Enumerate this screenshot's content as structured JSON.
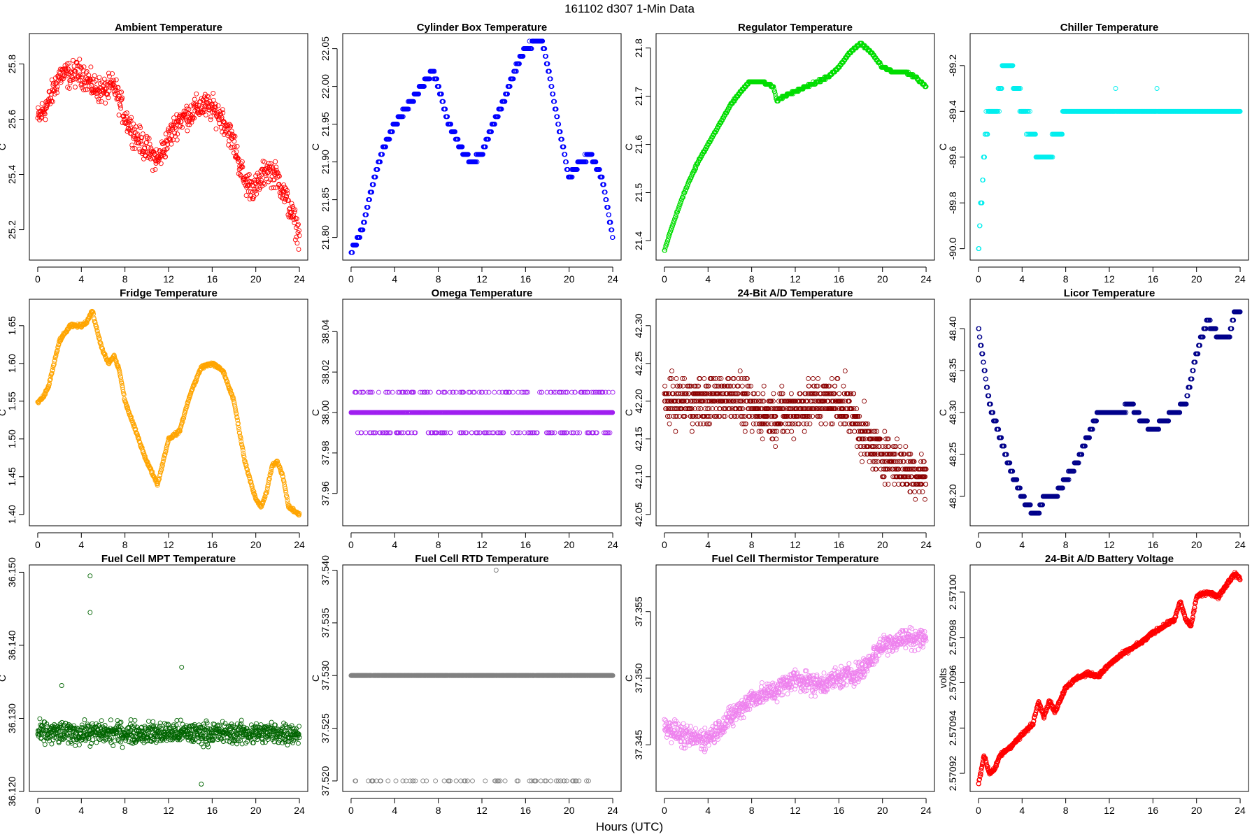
{
  "figure": {
    "supertitle": "161102   d307   1-Min Data",
    "xlabel": "Hours (UTC)"
  },
  "chart_data": [
    {
      "type": "scatter",
      "title": "Ambient Temperature",
      "ylabel": "C",
      "color": "#FF0000",
      "xlim": [
        0,
        24
      ],
      "ylim": [
        25.09,
        25.91
      ],
      "xticks": [
        0,
        4,
        8,
        12,
        16,
        20,
        24
      ],
      "xticklabels": [
        "0",
        "4",
        "8",
        "12",
        "16",
        "20",
        "24"
      ],
      "yticks": [
        25.2,
        25.4,
        25.6,
        25.8
      ],
      "yticklabels": [
        "25.2",
        "25.4",
        "25.6",
        "25.8"
      ],
      "x": [
        0,
        1,
        2,
        3,
        4,
        5,
        6,
        7,
        8,
        9,
        10,
        11,
        12,
        13,
        14,
        15,
        16,
        17,
        18,
        19,
        20,
        21,
        22,
        23,
        24
      ],
      "y": [
        25.6,
        25.66,
        25.76,
        25.76,
        25.77,
        25.72,
        25.7,
        25.72,
        25.61,
        25.54,
        25.49,
        25.45,
        25.53,
        25.6,
        25.62,
        25.65,
        25.64,
        25.6,
        25.51,
        25.37,
        25.35,
        25.42,
        25.39,
        25.29,
        25.18
      ],
      "jitter": 0.07,
      "n": 720
    },
    {
      "type": "scatter",
      "title": "Cylinder Box Temperature",
      "ylabel": "C",
      "color": "#0000FF",
      "xlim": [
        0,
        24
      ],
      "ylim": [
        21.77,
        22.07
      ],
      "xticks": [
        0,
        4,
        8,
        12,
        16,
        20,
        24
      ],
      "xticklabels": [
        "0",
        "4",
        "8",
        "12",
        "16",
        "20",
        "24"
      ],
      "yticks": [
        21.8,
        21.85,
        21.9,
        21.95,
        22.0,
        22.05
      ],
      "yticklabels": [
        "21.80",
        "21.85",
        "21.90",
        "21.95",
        "22.00",
        "22.05"
      ],
      "x": [
        0,
        1,
        2,
        3,
        4,
        5,
        6,
        7,
        7.5,
        8,
        9,
        10,
        11,
        12,
        13,
        14,
        15,
        16,
        17,
        17.5,
        18,
        19,
        20,
        21,
        22,
        23,
        24
      ],
      "y": [
        21.78,
        21.81,
        21.87,
        21.92,
        21.95,
        21.97,
        21.99,
        22.01,
        22.02,
        22.0,
        21.95,
        21.92,
        21.9,
        21.91,
        21.95,
        21.98,
        22.02,
        22.05,
        22.06,
        22.06,
        22.03,
        21.95,
        21.88,
        21.9,
        21.91,
        21.88,
        21.8
      ],
      "jitter": 0.003,
      "step": 0.01,
      "n": 620
    },
    {
      "type": "scatter",
      "title": "Regulator Temperature",
      "ylabel": "C",
      "color": "#00DD00",
      "xlim": [
        0,
        24
      ],
      "ylim": [
        21.36,
        21.83
      ],
      "xticks": [
        0,
        4,
        8,
        12,
        16,
        20,
        24
      ],
      "xticklabels": [
        "0",
        "4",
        "8",
        "12",
        "16",
        "20",
        "24"
      ],
      "yticks": [
        21.4,
        21.5,
        21.6,
        21.7,
        21.8
      ],
      "yticklabels": [
        "21.4",
        "21.5",
        "21.6",
        "21.7",
        "21.8"
      ],
      "x": [
        0,
        1,
        2,
        3,
        4,
        5,
        6,
        7,
        7.8,
        9,
        10,
        10.3,
        11,
        12,
        13,
        14,
        15,
        16,
        17,
        18,
        19,
        20,
        21,
        22,
        23,
        24
      ],
      "y": [
        21.38,
        21.45,
        21.51,
        21.56,
        21.6,
        21.64,
        21.68,
        21.71,
        21.73,
        21.73,
        21.72,
        21.69,
        21.7,
        21.71,
        21.72,
        21.73,
        21.74,
        21.76,
        21.79,
        21.81,
        21.79,
        21.76,
        21.75,
        21.75,
        21.74,
        21.72
      ],
      "jitter": 0.002,
      "step": 0.005,
      "n": 620
    },
    {
      "type": "scatter",
      "title": "Chiller Temperature",
      "ylabel": "C",
      "color": "#00EEEE",
      "xlim": [
        0,
        24
      ],
      "ylim": [
        -90.05,
        -89.06
      ],
      "xticks": [
        0,
        4,
        8,
        12,
        16,
        20,
        24
      ],
      "xticklabels": [
        "0",
        "4",
        "8",
        "12",
        "16",
        "20",
        "24"
      ],
      "yticks": [
        -90.0,
        -89.8,
        -89.6,
        -89.4,
        -89.2
      ],
      "yticklabels": [
        "-90.0",
        "-89.8",
        "-89.6",
        "-89.4",
        "-89.2"
      ],
      "x": [
        0,
        0.3,
        0.6,
        1,
        1.5,
        2,
        2.5,
        3,
        3.5,
        4,
        5,
        5.5,
        6,
        6.5,
        7,
        7.5,
        8,
        9,
        10,
        11,
        12,
        13,
        14,
        15,
        16,
        17,
        18,
        19,
        20,
        21,
        22,
        23,
        24
      ],
      "y": [
        -90.0,
        -89.8,
        -89.5,
        -89.4,
        -89.4,
        -89.3,
        -89.2,
        -89.2,
        -89.3,
        -89.4,
        -89.5,
        -89.6,
        -89.6,
        -89.6,
        -89.5,
        -89.5,
        -89.4,
        -89.4,
        -89.4,
        -89.4,
        -89.4,
        -89.4,
        -89.4,
        -89.4,
        -89.4,
        -89.4,
        -89.4,
        -89.4,
        -89.4,
        -89.4,
        -89.4,
        -89.4,
        -89.4
      ],
      "jitter": 0.06,
      "step": 0.1,
      "n": 520
    },
    {
      "type": "scatter",
      "title": "Fridge Temperature",
      "ylabel": "C",
      "color": "#FFA500",
      "xlim": [
        0,
        24
      ],
      "ylim": [
        1.385,
        1.685
      ],
      "xticks": [
        0,
        4,
        8,
        12,
        16,
        20,
        24
      ],
      "xticklabels": [
        "0",
        "4",
        "8",
        "12",
        "16",
        "20",
        "24"
      ],
      "yticks": [
        1.4,
        1.45,
        1.5,
        1.55,
        1.6,
        1.65
      ],
      "yticklabels": [
        "1.40",
        "1.45",
        "1.50",
        "1.55",
        "1.60",
        "1.65"
      ],
      "x": [
        0,
        0.5,
        1,
        1.5,
        2,
        3,
        4,
        4.5,
        5,
        5.5,
        6,
        6.5,
        7,
        7.5,
        8,
        9,
        10,
        11,
        11.5,
        12,
        12.5,
        13,
        14,
        15,
        16,
        17,
        18,
        19,
        20,
        20.5,
        21,
        21.5,
        22,
        22.5,
        23,
        23.5,
        24
      ],
      "y": [
        1.548,
        1.555,
        1.57,
        1.6,
        1.63,
        1.65,
        1.65,
        1.655,
        1.67,
        1.64,
        1.615,
        1.6,
        1.61,
        1.59,
        1.55,
        1.51,
        1.47,
        1.44,
        1.47,
        1.5,
        1.505,
        1.51,
        1.56,
        1.595,
        1.6,
        1.59,
        1.55,
        1.47,
        1.42,
        1.41,
        1.43,
        1.465,
        1.47,
        1.45,
        1.41,
        1.405,
        1.4
      ],
      "jitter": 0.003,
      "n": 720
    },
    {
      "type": "scatter",
      "title": "Omega Temperature",
      "ylabel": "C",
      "color": "#A020F0",
      "xlim": [
        0,
        24
      ],
      "ylim": [
        37.944,
        38.056
      ],
      "xticks": [
        0,
        4,
        8,
        12,
        16,
        20,
        24
      ],
      "xticklabels": [
        "0",
        "4",
        "8",
        "12",
        "16",
        "20",
        "24"
      ],
      "yticks": [
        37.96,
        37.98,
        38.0,
        38.02,
        38.04
      ],
      "yticklabels": [
        "37.96",
        "37.98",
        "38.00",
        "38.02",
        "38.04"
      ],
      "x": [
        0,
        24
      ],
      "y": [
        38.0,
        38.0
      ],
      "jitter": 0.012,
      "step": 0.01,
      "n": 1100
    },
    {
      "type": "scatter",
      "title": "24-Bit A/D Temperature",
      "ylabel": "C",
      "color": "#8B0000",
      "xlim": [
        0,
        24
      ],
      "ylim": [
        42.035,
        42.335
      ],
      "xticks": [
        0,
        4,
        8,
        12,
        16,
        20,
        24
      ],
      "xticklabels": [
        "0",
        "4",
        "8",
        "12",
        "16",
        "20",
        "24"
      ],
      "yticks": [
        42.05,
        42.1,
        42.15,
        42.2,
        42.25,
        42.3
      ],
      "yticklabels": [
        "42.05",
        "42.10",
        "42.15",
        "42.20",
        "42.25",
        "42.30"
      ],
      "x": [
        0,
        2,
        4,
        6,
        8,
        10,
        12,
        14,
        16,
        17,
        18,
        19,
        20,
        22,
        24
      ],
      "y": [
        42.2,
        42.2,
        42.2,
        42.21,
        42.19,
        42.18,
        42.19,
        42.2,
        42.2,
        42.19,
        42.16,
        42.14,
        42.13,
        42.11,
        42.1
      ],
      "jitter": 0.045,
      "step": 0.01,
      "n": 1100
    },
    {
      "type": "scatter",
      "title": "Licor Temperature",
      "ylabel": "C",
      "color": "#00008B",
      "xlim": [
        0,
        24
      ],
      "ylim": [
        48.165,
        48.435
      ],
      "xticks": [
        0,
        4,
        8,
        12,
        16,
        20,
        24
      ],
      "xticklabels": [
        "0",
        "4",
        "8",
        "12",
        "16",
        "20",
        "24"
      ],
      "yticks": [
        48.2,
        48.25,
        48.3,
        48.35,
        48.4
      ],
      "yticklabels": [
        "48.20",
        "48.25",
        "48.30",
        "48.35",
        "48.40"
      ],
      "x": [
        0,
        1,
        2,
        3,
        4,
        5,
        5.5,
        6,
        7,
        8,
        9,
        10,
        11,
        12,
        13,
        14,
        15,
        16,
        17,
        18,
        19,
        20,
        21,
        22,
        23,
        23.5,
        24
      ],
      "y": [
        48.4,
        48.31,
        48.27,
        48.23,
        48.2,
        48.18,
        48.18,
        48.2,
        48.2,
        48.22,
        48.24,
        48.27,
        48.3,
        48.3,
        48.3,
        48.31,
        48.29,
        48.28,
        48.29,
        48.3,
        48.31,
        48.37,
        48.41,
        48.39,
        48.39,
        48.42,
        48.42
      ],
      "jitter": 0.002,
      "step": 0.01,
      "n": 560
    },
    {
      "type": "scatter",
      "title": "Fuel Cell MPT Temperature",
      "ylabel": "C",
      "color": "#006400",
      "xlim": [
        0,
        24
      ],
      "ylim": [
        36.12,
        36.151
      ],
      "xticks": [
        0,
        4,
        8,
        12,
        16,
        20,
        24
      ],
      "xticklabels": [
        "0",
        "4",
        "8",
        "12",
        "16",
        "20",
        "24"
      ],
      "yticks": [
        36.12,
        36.13,
        36.14,
        36.15
      ],
      "yticklabels": [
        "36.120",
        "36.130",
        "36.140",
        "36.150"
      ],
      "x": [
        0,
        24
      ],
      "y": [
        36.128,
        36.128
      ],
      "jitter": 0.0022,
      "n": 900,
      "outliers": [
        [
          4.8,
          36.1495
        ],
        [
          4.8,
          36.1445
        ],
        [
          13.2,
          36.137
        ],
        [
          2.2,
          36.1345
        ],
        [
          15,
          36.121
        ]
      ]
    },
    {
      "type": "scatter",
      "title": "Fuel Cell RTD Temperature",
      "ylabel": "C",
      "color": "#808080",
      "xlim": [
        0,
        24
      ],
      "ylim": [
        37.519,
        37.5405
      ],
      "xticks": [
        0,
        4,
        8,
        12,
        16,
        20,
        24
      ],
      "xticklabels": [
        "0",
        "4",
        "8",
        "12",
        "16",
        "20",
        "24"
      ],
      "yticks": [
        37.52,
        37.525,
        37.53,
        37.535,
        37.54
      ],
      "yticklabels": [
        "37.520",
        "37.525",
        "37.530",
        "37.535",
        "37.540"
      ],
      "x": [
        0,
        24
      ],
      "y": [
        37.53,
        37.53
      ],
      "jitter": 0,
      "n": 900,
      "outliers": [
        [
          13.3,
          37.54
        ]
      ],
      "low_level": 37.52
    },
    {
      "type": "scatter",
      "title": "Fuel Cell Thermistor Temperature",
      "ylabel": "C",
      "color": "#EE82EE",
      "xlim": [
        0,
        24
      ],
      "ylim": [
        37.3415,
        37.3585
      ],
      "xticks": [
        0,
        4,
        8,
        12,
        16,
        20,
        24
      ],
      "xticklabels": [
        "0",
        "4",
        "8",
        "12",
        "16",
        "20",
        "24"
      ],
      "yticks": [
        37.345,
        37.35,
        37.355
      ],
      "yticklabels": [
        "37.345",
        "37.350",
        "37.355"
      ],
      "x": [
        0,
        2,
        4,
        6,
        8,
        10,
        12,
        14,
        16,
        18,
        20,
        22,
        24
      ],
      "y": [
        37.3465,
        37.3455,
        37.3455,
        37.347,
        37.3485,
        37.349,
        37.35,
        37.3495,
        37.35,
        37.3505,
        37.3525,
        37.353,
        37.353
      ],
      "jitter": 0.0012,
      "n": 900
    },
    {
      "type": "scatter",
      "title": "24-Bit A/D Battery Voltage",
      "ylabel": "volts",
      "color": "#FF0000",
      "xlim": [
        0,
        24
      ],
      "ylim": [
        2.570912,
        2.571012
      ],
      "xticks": [
        0,
        4,
        8,
        12,
        16,
        20,
        24
      ],
      "xticklabels": [
        "0",
        "4",
        "8",
        "12",
        "16",
        "20",
        "24"
      ],
      "yticks": [
        2.57092,
        2.57094,
        2.57096,
        2.57098,
        2.571
      ],
      "yticklabels": [
        "2.57092",
        "2.57094",
        "2.57096",
        "2.57098",
        "2.57100"
      ],
      "x": [
        0,
        0.5,
        1,
        1.5,
        2,
        3,
        4,
        5,
        5.5,
        6,
        6.5,
        7,
        8,
        9,
        10,
        11,
        12,
        13,
        14,
        15,
        16,
        17,
        18,
        18.5,
        19,
        19.5,
        20,
        21,
        22,
        23,
        23.5,
        24
      ],
      "y": [
        2.570915,
        2.570928,
        2.57092,
        2.570922,
        2.570928,
        2.570932,
        2.570937,
        2.570942,
        2.570952,
        2.570945,
        2.570952,
        2.570947,
        2.570958,
        2.570962,
        2.570964,
        2.570963,
        2.570968,
        2.570972,
        2.570975,
        2.570978,
        2.570982,
        2.570985,
        2.570988,
        2.570996,
        2.570988,
        2.570985,
        2.570998,
        2.571,
        2.570998,
        2.571005,
        2.571008,
        2.571006
      ],
      "jitter": 1.2e-06,
      "n": 900
    }
  ]
}
